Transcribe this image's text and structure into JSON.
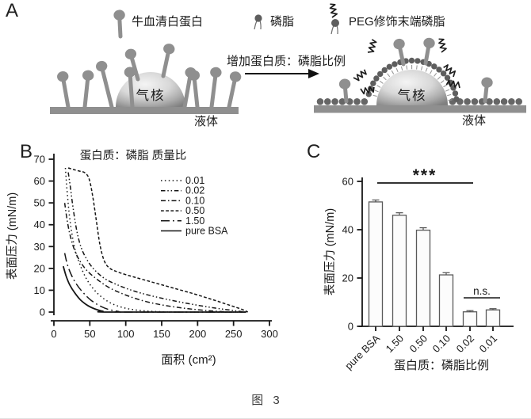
{
  "panels": {
    "a": "A",
    "b": "B",
    "c": "C"
  },
  "caption": "图 3",
  "panel_a": {
    "legend": [
      {
        "icon": "bsa-protein-icon",
        "label": "牛血清白蛋白"
      },
      {
        "icon": "phospholipid-icon",
        "label": "磷脂"
      },
      {
        "icon": "peg-phospholipid-icon",
        "label": "PEG修饰末端磷脂"
      }
    ],
    "arrow_label": "增加蛋白质：磷脂比例",
    "left_bubble": {
      "core": "气核",
      "liquid": "液体"
    },
    "right_bubble": {
      "core": "气核",
      "liquid": "液体"
    }
  },
  "colors": {
    "schematic_gray": "#8f8f8f",
    "lipid_dark_gray": "#5e5e5e",
    "line_black": "#161616",
    "bar_fill": "#fcfcfc",
    "bar_stroke": "#5a5a5a"
  },
  "chart_data": [
    {
      "type": "line",
      "title": "蛋白质：磷脂 质量比",
      "xlabel": "面积 (cm²)",
      "ylabel": "表面压力 (mN/m)",
      "xlim": [
        0,
        300
      ],
      "ylim": [
        0,
        70
      ],
      "xticks": [
        0,
        50,
        100,
        150,
        200,
        250,
        300
      ],
      "yticks": [
        0,
        10,
        20,
        30,
        40,
        50,
        60,
        70
      ],
      "grid": false,
      "legend_position": "upper right",
      "series": [
        {
          "name": "0.01",
          "dash": "dotted",
          "points": [
            [
              16,
              66
            ],
            [
              18,
              57
            ],
            [
              21,
              46
            ],
            [
              25,
              36
            ],
            [
              30,
              28
            ],
            [
              36,
              22
            ],
            [
              44,
              16
            ],
            [
              54,
              11
            ],
            [
              66,
              7
            ],
            [
              80,
              4
            ],
            [
              97,
              2
            ],
            [
              118,
              0.8
            ],
            [
              145,
              0.2
            ],
            [
              175,
              0
            ],
            [
              268,
              0
            ]
          ]
        },
        {
          "name": "0.02",
          "dash": "dash-dot-dot",
          "points": [
            [
              20,
              64
            ],
            [
              23,
              57
            ],
            [
              27,
              47
            ],
            [
              32,
              37
            ],
            [
              38,
              29.5
            ],
            [
              46,
              24
            ],
            [
              56,
              19.5
            ],
            [
              70,
              15.5
            ],
            [
              88,
              12.5
            ],
            [
              110,
              9.8
            ],
            [
              135,
              7.5
            ],
            [
              165,
              5.3
            ],
            [
              195,
              3.4
            ],
            [
              225,
              1.8
            ],
            [
              250,
              0.7
            ],
            [
              266,
              0
            ]
          ]
        },
        {
          "name": "0.10",
          "dash": "dash-dot",
          "points": [
            [
              15,
              50
            ],
            [
              18,
              43
            ],
            [
              22,
              36
            ],
            [
              28,
              29
            ],
            [
              36,
              23.5
            ],
            [
              46,
              19
            ],
            [
              60,
              15
            ],
            [
              78,
              11
            ],
            [
              100,
              7.8
            ],
            [
              126,
              5
            ],
            [
              155,
              3
            ],
            [
              188,
              1.5
            ],
            [
              220,
              0.5
            ],
            [
              248,
              0
            ]
          ]
        },
        {
          "name": "0.50",
          "dash": "dashed",
          "points": [
            [
              20,
              66
            ],
            [
              27,
              65.3
            ],
            [
              35,
              64.6
            ],
            [
              43,
              63.8
            ],
            [
              49,
              61
            ],
            [
              54,
              53
            ],
            [
              59,
              42
            ],
            [
              64,
              31
            ],
            [
              70,
              23.5
            ],
            [
              78,
              20
            ],
            [
              92,
              18
            ],
            [
              112,
              16
            ],
            [
              136,
              13.8
            ],
            [
              162,
              11.4
            ],
            [
              190,
              8.8
            ],
            [
              218,
              6
            ],
            [
              244,
              3.2
            ],
            [
              262,
              1.2
            ],
            [
              270,
              0
            ]
          ]
        },
        {
          "name": "1.50",
          "dash": "long-dash-dot",
          "points": [
            [
              15,
              27
            ],
            [
              19,
              21.5
            ],
            [
              25,
              16.5
            ],
            [
              32,
              12.5
            ],
            [
              41,
              8.8
            ],
            [
              51,
              5.6
            ],
            [
              63,
              3
            ],
            [
              76,
              1.2
            ],
            [
              90,
              0.3
            ],
            [
              100,
              0
            ],
            [
              268,
              0
            ]
          ]
        },
        {
          "name": "pure BSA",
          "dash": "solid",
          "points": [
            [
              13,
              21
            ],
            [
              17,
              16.5
            ],
            [
              22,
              12.5
            ],
            [
              29,
              8.8
            ],
            [
              37,
              5.6
            ],
            [
              47,
              3
            ],
            [
              58,
              1.3
            ],
            [
              68,
              0.4
            ],
            [
              78,
              0
            ],
            [
              266,
              0
            ]
          ]
        }
      ]
    },
    {
      "type": "bar",
      "title": "",
      "xlabel": "蛋白质：磷脂比例",
      "ylabel": "表面压力 (mN/m)",
      "categories": [
        "pure BSA",
        "1.50",
        "0.50",
        "0.10",
        "0.02",
        "0.01"
      ],
      "values": [
        51.5,
        46,
        39.8,
        21.3,
        6,
        6.8
      ],
      "errors": [
        0.8,
        1,
        1,
        0.9,
        0.5,
        0.5
      ],
      "ylim": [
        0,
        60
      ],
      "yticks": [
        0,
        20,
        40,
        60
      ],
      "grid": false,
      "annotations": [
        {
          "text": "***",
          "type": "sig-line",
          "between": [
            "pure BSA",
            "0.02"
          ]
        },
        {
          "text": "n.s.",
          "type": "sig-line",
          "between": [
            "0.02",
            "0.01"
          ]
        }
      ]
    }
  ]
}
